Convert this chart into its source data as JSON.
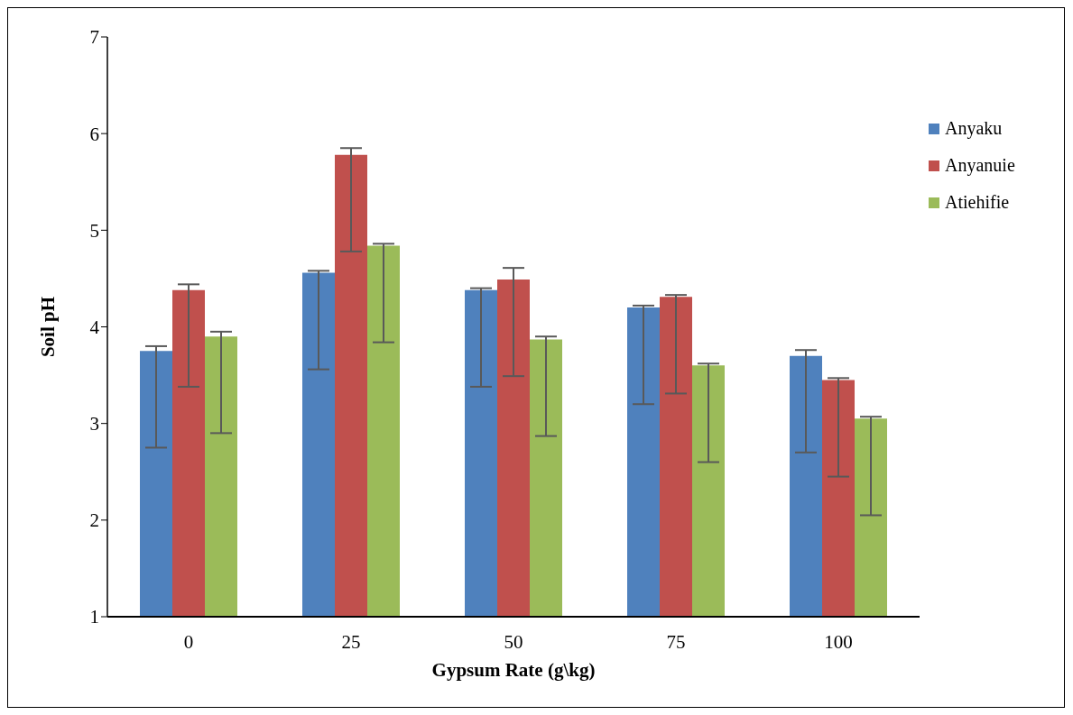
{
  "chart_data": {
    "type": "bar",
    "xlabel": "Gypsum Rate (g\\kg)",
    "ylabel": "Soil pH",
    "categories": [
      "0",
      "25",
      "50",
      "75",
      "100"
    ],
    "series": [
      {
        "name": "Anyaku",
        "color": "#4f81bd",
        "values": [
          3.75,
          4.56,
          4.38,
          4.2,
          3.7
        ],
        "errors": [
          [
            2.75,
            3.8
          ],
          [
            3.56,
            4.58
          ],
          [
            3.38,
            4.4
          ],
          [
            3.2,
            4.22
          ],
          [
            2.7,
            3.76
          ]
        ]
      },
      {
        "name": "Anyanuie",
        "color": "#c0504d",
        "values": [
          4.38,
          5.78,
          4.49,
          4.31,
          3.45
        ],
        "errors": [
          [
            3.38,
            4.44
          ],
          [
            4.78,
            5.85
          ],
          [
            3.49,
            4.61
          ],
          [
            3.31,
            4.33
          ],
          [
            2.45,
            3.47
          ]
        ]
      },
      {
        "name": "Atiehifie",
        "color": "#9bbb59",
        "values": [
          3.9,
          4.84,
          3.87,
          3.6,
          3.05
        ],
        "errors": [
          [
            2.9,
            3.95
          ],
          [
            3.84,
            4.86
          ],
          [
            2.87,
            3.9
          ],
          [
            2.6,
            3.62
          ],
          [
            2.05,
            3.07
          ]
        ]
      }
    ],
    "ylim": [
      1,
      7
    ],
    "yticks": [
      1,
      2,
      3,
      4,
      5,
      6,
      7
    ],
    "grid": false,
    "legend": "right"
  }
}
